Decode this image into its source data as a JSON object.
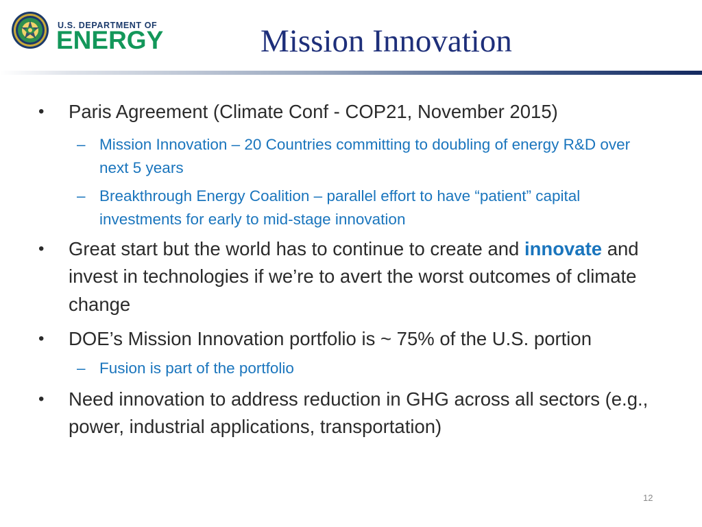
{
  "header": {
    "logo_small": "U.S. DEPARTMENT OF",
    "logo_big": "ENERGY",
    "logo_icon": "doe-seal-icon",
    "title": "Mission Innovation"
  },
  "bullets": [
    {
      "text": "Paris Agreement (Climate Conf - COP21, November 2015)",
      "subs": [
        "Mission Innovation – 20 Countries committing to doubling of energy R&D over next 5 years",
        "Breakthrough Energy Coalition – parallel effort to have “patient” capital investments for early to mid-stage innovation"
      ]
    },
    {
      "text_before": "Great start but the world has to continue to create and",
      "emphasis": "innovate",
      "text_after": "and invest in technologies if we’re to avert the worst outcomes of climate change"
    },
    {
      "text": "DOE’s Mission Innovation portfolio is ~ 75% of the U.S. portion",
      "subs": [
        "Fusion is part of the portfolio"
      ]
    },
    {
      "text": "Need innovation to address reduction in GHG across all sectors (e.g., power, industrial applications, transportation)"
    }
  ],
  "bullet_glyph": "•",
  "sub_glyph": "–",
  "page_number": "12",
  "colors": {
    "title": "#1e2f7a",
    "body_text": "#2b2b2b",
    "sub_text": "#1a75bd",
    "logo_green": "#13975a",
    "logo_navy": "#1b3a6b"
  }
}
